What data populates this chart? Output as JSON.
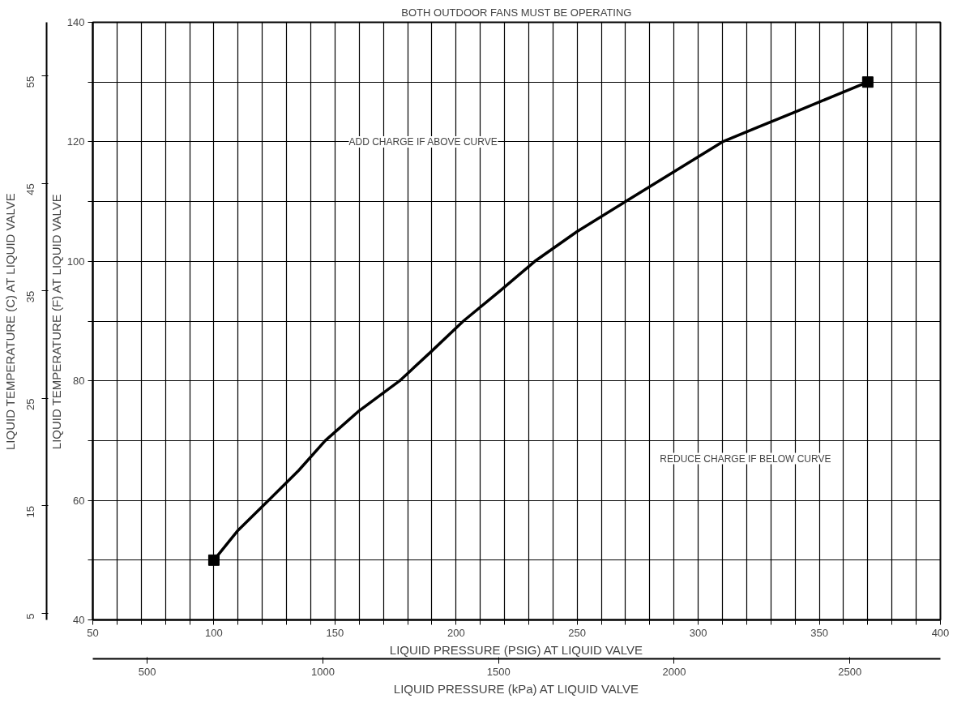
{
  "chart_data": {
    "type": "line",
    "title": "BOTH OUTDOOR FANS MUST BE OPERATING",
    "xlabel": "LIQUID PRESSURE (PSIG) AT LIQUID VALVE",
    "ylabel": "LIQUID TEMPERATURE (F) AT LIQUID VALVE",
    "y2label": "LIQUID TEMPERATURE (C) AT LIQUID VALVE",
    "x2label": "LIQUID PRESSURE (kPa) AT LIQUID VALVE",
    "series": [
      {
        "color": "#000000",
        "marker": "none",
        "x": [
          100,
          110,
          122.6,
          135,
          146,
          160,
          176.7,
          190,
          203,
          218,
          232.5,
          250,
          270,
          290,
          310,
          325,
          340,
          355,
          370
        ],
        "values": [
          50,
          55,
          60,
          65,
          70,
          75,
          80,
          85,
          90,
          95,
          100,
          105,
          110,
          115,
          120,
          122.5,
          125,
          127.5,
          130
        ]
      },
      {
        "type": "scatter",
        "color": "#000000",
        "marker": "square",
        "x": [
          100,
          370
        ],
        "values": [
          50,
          130
        ]
      }
    ],
    "xlim": [
      50,
      400
    ],
    "ylim": [
      40,
      140
    ],
    "xticks": [
      50,
      {
        "value": 60,
        "label": null
      },
      {
        "value": 70,
        "label": null
      },
      {
        "value": 80,
        "label": null
      },
      {
        "value": 90,
        "label": null
      },
      100,
      {
        "value": 110,
        "label": null
      },
      {
        "value": 120,
        "label": null
      },
      {
        "value": 130,
        "label": null
      },
      {
        "value": 140,
        "label": null
      },
      150,
      {
        "value": 160,
        "label": null
      },
      {
        "value": 170,
        "label": null
      },
      {
        "value": 180,
        "label": null
      },
      {
        "value": 190,
        "label": null
      },
      200,
      {
        "value": 210,
        "label": null
      },
      {
        "value": 220,
        "label": null
      },
      {
        "value": 230,
        "label": null
      },
      {
        "value": 240,
        "label": null
      },
      250,
      {
        "value": 260,
        "label": null
      },
      {
        "value": 270,
        "label": null
      },
      {
        "value": 280,
        "label": null
      },
      {
        "value": 290,
        "label": null
      },
      300,
      {
        "value": 310,
        "label": null
      },
      {
        "value": 320,
        "label": null
      },
      {
        "value": 330,
        "label": null
      },
      {
        "value": 340,
        "label": null
      },
      350,
      {
        "value": 360,
        "label": null
      },
      {
        "value": 370,
        "label": null
      },
      {
        "value": 380,
        "label": null
      },
      {
        "value": 390,
        "label": null
      },
      400
    ],
    "yticks": [
      40,
      {
        "value": 50,
        "label": null
      },
      60,
      {
        "value": 70,
        "label": null
      },
      80,
      {
        "value": 90,
        "label": null
      },
      100,
      {
        "value": 110,
        "label": null
      },
      120,
      {
        "value": 130,
        "label": null
      },
      140
    ],
    "y2lim": [
      4.4,
      60
    ],
    "y2ticks": [
      5,
      15,
      25,
      35,
      45,
      55
    ],
    "x2lim": [
      345,
      2758
    ],
    "x2ticks": [
      500,
      1000,
      1500,
      2000,
      2500
    ],
    "grid": true,
    "annotations": [
      "ADD CHARGE IF ABOVE CURVE",
      "REDUCE CHARGE IF BELOW CURVE"
    ]
  }
}
